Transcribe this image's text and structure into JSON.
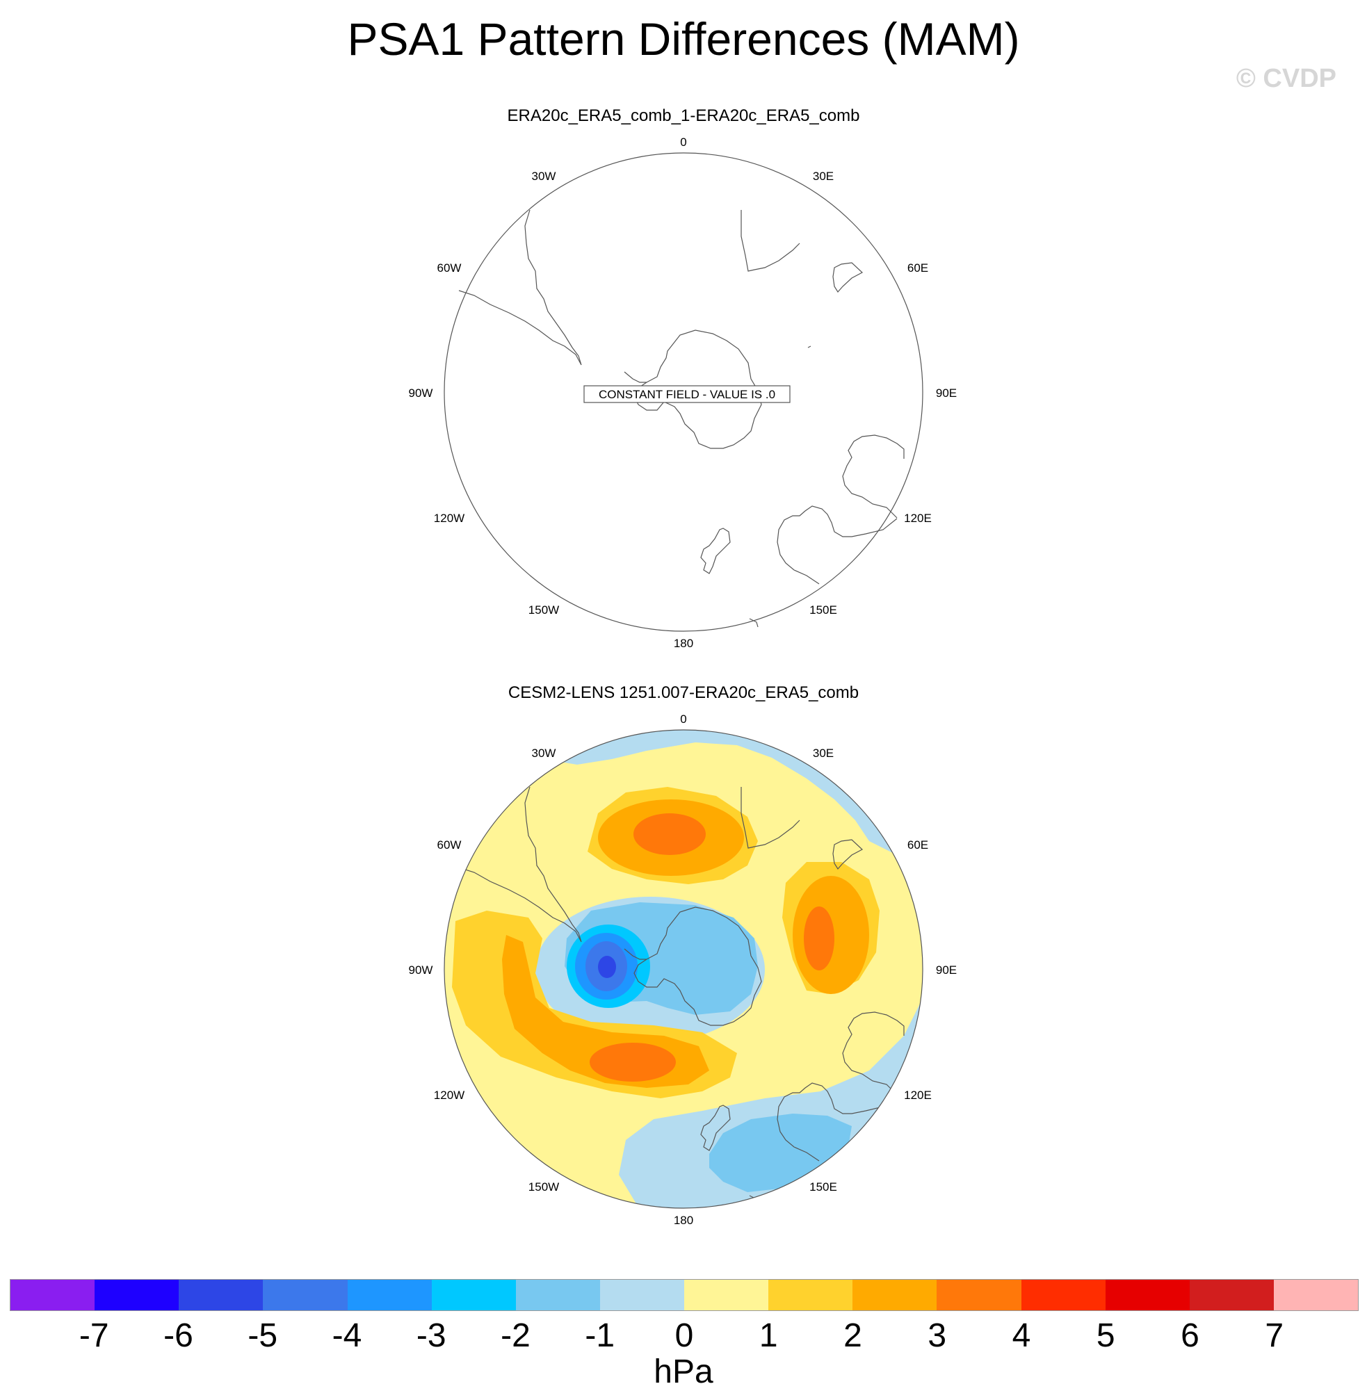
{
  "figure": {
    "title": "PSA1 Pattern Differences (MAM)",
    "watermark": "© CVDP"
  },
  "panels": [
    {
      "subtitle": "ERA20c_ERA5_comb_1-ERA20c_ERA5_comb",
      "field": "constant",
      "message": "CONSTANT FIELD - VALUE IS .0",
      "longitude_labels": [
        "0",
        "30E",
        "60E",
        "90E",
        "120E",
        "150E",
        "180",
        "150W",
        "120W",
        "90W",
        "60W",
        "30W"
      ]
    },
    {
      "subtitle": "CESM2-LENS 1251.007-ERA20c_ERA5_comb",
      "field": "contours",
      "features": [
        {
          "label": "negative center near Antarctic Peninsula",
          "lon": -65,
          "lat": -72,
          "value": -5.5
        },
        {
          "label": "positive center South Atlantic",
          "lon": -12,
          "lat": -45,
          "value": 3.4
        },
        {
          "label": "positive center southern Indian Ocean",
          "lon": 75,
          "lat": -60,
          "value": 3.3
        },
        {
          "label": "positive center South Pacific",
          "lon": -155,
          "lat": -48,
          "value": 3.5
        },
        {
          "label": "negative center south of Australia",
          "lon": 155,
          "lat": -42,
          "value": -1.6
        }
      ],
      "longitude_labels": [
        "0",
        "30E",
        "60E",
        "90E",
        "120E",
        "150E",
        "180",
        "150W",
        "120W",
        "90W",
        "60W",
        "30W"
      ]
    }
  ],
  "colorbar": {
    "labels": [
      "-7",
      "-6",
      "-5",
      "-4",
      "-3",
      "-2",
      "-1",
      "0",
      "1",
      "2",
      "3",
      "4",
      "5",
      "6",
      "7"
    ],
    "colors": [
      "#8a1ef0",
      "#1e00ff",
      "#2d46e6",
      "#3c78eb",
      "#1e96ff",
      "#00c8ff",
      "#78c8f0",
      "#b4dcf0",
      "#fff596",
      "#ffd22d",
      "#ffaa00",
      "#ff780a",
      "#ff2d00",
      "#e60000",
      "#d21e1e",
      "#ffb4b4"
    ],
    "units": "hPa"
  }
}
